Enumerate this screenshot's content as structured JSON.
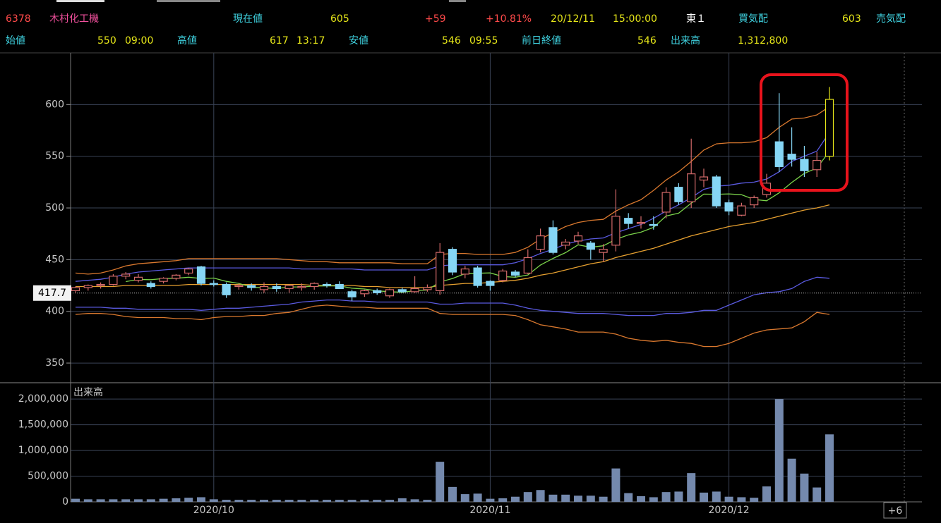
{
  "header": {
    "row1": [
      "6378",
      "木村化工機",
      "現在値",
      "605",
      "+59",
      "+10.81%",
      "20/12/11",
      "15:00:00",
      "東１",
      "買気配",
      "603",
      "売気配"
    ],
    "row2": [
      "始値",
      "550",
      "09:00",
      "高値",
      "617",
      "13:17",
      "安値",
      "546",
      "09:55",
      "前日終値",
      "546",
      "出来高",
      "1,312,800"
    ]
  },
  "chart_data": {
    "type": "candlestick",
    "categories": [
      null,
      null,
      null,
      null,
      null,
      null,
      null,
      null,
      null,
      null,
      null,
      "2020/10",
      null,
      null,
      null,
      null,
      null,
      null,
      null,
      null,
      null,
      null,
      null,
      null,
      null,
      null,
      null,
      null,
      null,
      null,
      null,
      null,
      null,
      "2020/11",
      null,
      null,
      null,
      null,
      null,
      null,
      null,
      null,
      null,
      null,
      null,
      null,
      null,
      null,
      null,
      null,
      null,
      null,
      "2020/12",
      null,
      null,
      null,
      null,
      null,
      null,
      null,
      null
    ],
    "open": [
      420,
      423,
      425,
      426,
      434,
      430,
      427,
      429,
      432,
      437,
      443,
      427,
      426,
      424,
      425,
      421,
      424,
      422,
      423,
      424,
      426,
      426,
      419,
      417,
      420,
      415,
      421,
      419,
      421,
      420,
      460,
      436,
      442,
      429,
      430,
      438,
      437,
      460,
      481,
      464,
      468,
      466,
      457,
      464,
      490,
      485,
      484,
      496,
      520,
      506,
      527,
      530,
      505,
      493,
      503,
      513,
      564,
      552,
      547,
      537,
      550
    ],
    "high": [
      424,
      426,
      428,
      436,
      438,
      436,
      429,
      433,
      436,
      442,
      444,
      430,
      428,
      427,
      427,
      428,
      427,
      426,
      427,
      428,
      428,
      429,
      421,
      421,
      422,
      422,
      423,
      434,
      426,
      466,
      462,
      444,
      444,
      430,
      441,
      440,
      460,
      480,
      488,
      470,
      477,
      468,
      465,
      518,
      495,
      492,
      492,
      520,
      524,
      567,
      538,
      532,
      508,
      505,
      512,
      533,
      611,
      578,
      560,
      554,
      617
    ],
    "low": [
      418,
      420,
      422,
      425,
      431,
      428,
      422,
      427,
      430,
      435,
      425,
      424,
      413,
      421,
      420,
      418,
      419,
      418,
      420,
      421,
      423,
      423,
      410,
      414,
      416,
      413,
      418,
      418,
      419,
      416,
      435,
      432,
      423,
      420,
      428,
      433,
      436,
      457,
      455,
      460,
      465,
      450,
      448,
      458,
      480,
      480,
      479,
      490,
      503,
      500,
      520,
      500,
      493,
      492,
      500,
      510,
      535,
      540,
      530,
      530,
      546
    ],
    "close": [
      423,
      425,
      426,
      434,
      436,
      433,
      424,
      432,
      435,
      441,
      427,
      426,
      416,
      425,
      423,
      424,
      422,
      425,
      424,
      427,
      425,
      422,
      414,
      420,
      418,
      421,
      419,
      422,
      423,
      457,
      438,
      441,
      425,
      425,
      439,
      435,
      452,
      473,
      457,
      467,
      473,
      460,
      460,
      492,
      485,
      486,
      483,
      515,
      506,
      533,
      530,
      502,
      497,
      502,
      510,
      524,
      540,
      547,
      536,
      546,
      605
    ],
    "up_color": "#d46a6a",
    "down_color": "#86d6f5",
    "last_color": "#e6e619",
    "ylim": [
      333,
      650
    ],
    "yticks": [
      350,
      400,
      450,
      500,
      550,
      600
    ],
    "grid": true,
    "price_marker": 417.7,
    "lines": [
      {
        "color": "#d9782e",
        "values": [
          437,
          436,
          437,
          440,
          444,
          446,
          447,
          448,
          449,
          451,
          451,
          451,
          451,
          451,
          451,
          451,
          451,
          450,
          449,
          448,
          448,
          447,
          447,
          447,
          447,
          447,
          446,
          446,
          446,
          455,
          456,
          456,
          455,
          455,
          455,
          457,
          462,
          470,
          476,
          482,
          486,
          488,
          489,
          497,
          503,
          508,
          517,
          527,
          535,
          545,
          556,
          562,
          563,
          563,
          564,
          568,
          578,
          586,
          587,
          590,
          598
        ]
      },
      {
        "color": "#5a5ae0",
        "values": [
          429,
          430,
          431,
          433,
          436,
          438,
          439,
          440,
          441,
          442,
          442,
          442,
          442,
          442,
          442,
          442,
          442,
          442,
          441,
          441,
          441,
          441,
          441,
          440,
          440,
          440,
          440,
          440,
          440,
          444,
          445,
          445,
          445,
          445,
          445,
          447,
          451,
          456,
          460,
          465,
          468,
          470,
          471,
          476,
          480,
          484,
          490,
          497,
          503,
          510,
          518,
          521,
          522,
          524,
          525,
          528,
          535,
          545,
          550,
          555,
          573
        ]
      },
      {
        "color": "#e6a030",
        "values": [
          424,
          424,
          424,
          424,
          425,
          425,
          425,
          425,
          425,
          426,
          426,
          426,
          426,
          426,
          426,
          426,
          426,
          426,
          426,
          425,
          425,
          425,
          425,
          424,
          424,
          423,
          423,
          423,
          423,
          425,
          426,
          427,
          427,
          428,
          429,
          430,
          432,
          435,
          437,
          440,
          443,
          446,
          448,
          452,
          455,
          458,
          461,
          465,
          469,
          473,
          476,
          479,
          482,
          484,
          486,
          489,
          492,
          495,
          498,
          500,
          503
        ]
      },
      {
        "color": "#5a5ae0",
        "values": [
          404,
          404,
          404,
          403,
          403,
          402,
          402,
          402,
          402,
          402,
          401,
          402,
          403,
          403,
          404,
          405,
          406,
          407,
          409,
          410,
          411,
          411,
          410,
          410,
          409,
          409,
          409,
          409,
          409,
          407,
          407,
          408,
          408,
          408,
          408,
          406,
          403,
          401,
          400,
          399,
          398,
          398,
          398,
          397,
          396,
          396,
          396,
          398,
          398,
          399,
          401,
          401,
          406,
          411,
          416,
          418,
          419,
          422,
          429,
          433,
          432
        ]
      },
      {
        "color": "#d9782e",
        "values": [
          397,
          398,
          398,
          397,
          395,
          394,
          394,
          394,
          393,
          393,
          392,
          394,
          395,
          395,
          396,
          396,
          398,
          399,
          402,
          405,
          406,
          405,
          404,
          404,
          403,
          403,
          403,
          403,
          403,
          398,
          397,
          397,
          397,
          397,
          397,
          396,
          392,
          387,
          385,
          383,
          380,
          380,
          380,
          378,
          374,
          372,
          371,
          372,
          370,
          369,
          366,
          366,
          369,
          374,
          379,
          382,
          383,
          384,
          390,
          399,
          397
        ]
      },
      {
        "color": "#7ad24a",
        "values": [
          null,
          null,
          null,
          null,
          428.8,
          430.8,
          430.6,
          431.8,
          432,
          433,
          431.8,
          432.2,
          429,
          427,
          423.4,
          422.8,
          422,
          423.6,
          423.6,
          424.4,
          424.6,
          424.6,
          422.4,
          421.6,
          419.8,
          419,
          418.4,
          420,
          420.6,
          428.4,
          431.8,
          436.4,
          436.8,
          437.2,
          433.6,
          433,
          435.2,
          444.8,
          451.2,
          456.8,
          464.4,
          462,
          463.4,
          469.6,
          474,
          476.6,
          481.2,
          492.2,
          495,
          504.6,
          513.4,
          513.2,
          513.6,
          512.8,
          508.2,
          507,
          514.6,
          524.6,
          533.4,
          538.6,
          554.8
        ]
      }
    ],
    "volume": {
      "title": "出来高",
      "color": "#7489ad",
      "values": [
        60000,
        50000,
        50000,
        50000,
        50000,
        50000,
        50000,
        60000,
        70000,
        80000,
        90000,
        50000,
        40000,
        40000,
        40000,
        40000,
        40000,
        40000,
        40000,
        40000,
        40000,
        40000,
        40000,
        40000,
        40000,
        40000,
        70000,
        50000,
        40000,
        780000,
        290000,
        150000,
        160000,
        60000,
        70000,
        100000,
        190000,
        230000,
        140000,
        140000,
        120000,
        120000,
        100000,
        650000,
        170000,
        110000,
        90000,
        190000,
        200000,
        560000,
        180000,
        200000,
        100000,
        90000,
        80000,
        300000,
        2000000,
        840000,
        550000,
        280000,
        1312800
      ],
      "ylim": [
        0,
        2290000
      ],
      "yticks": [
        0,
        {
          "value": 500000,
          "label": "500,000"
        },
        {
          "value": 1000000,
          "label": "1,000,000"
        },
        {
          "value": 1500000,
          "label": "1,500,000"
        },
        {
          "value": 2000000,
          "label": "2,000,000"
        }
      ]
    },
    "future_label": "+6"
  }
}
